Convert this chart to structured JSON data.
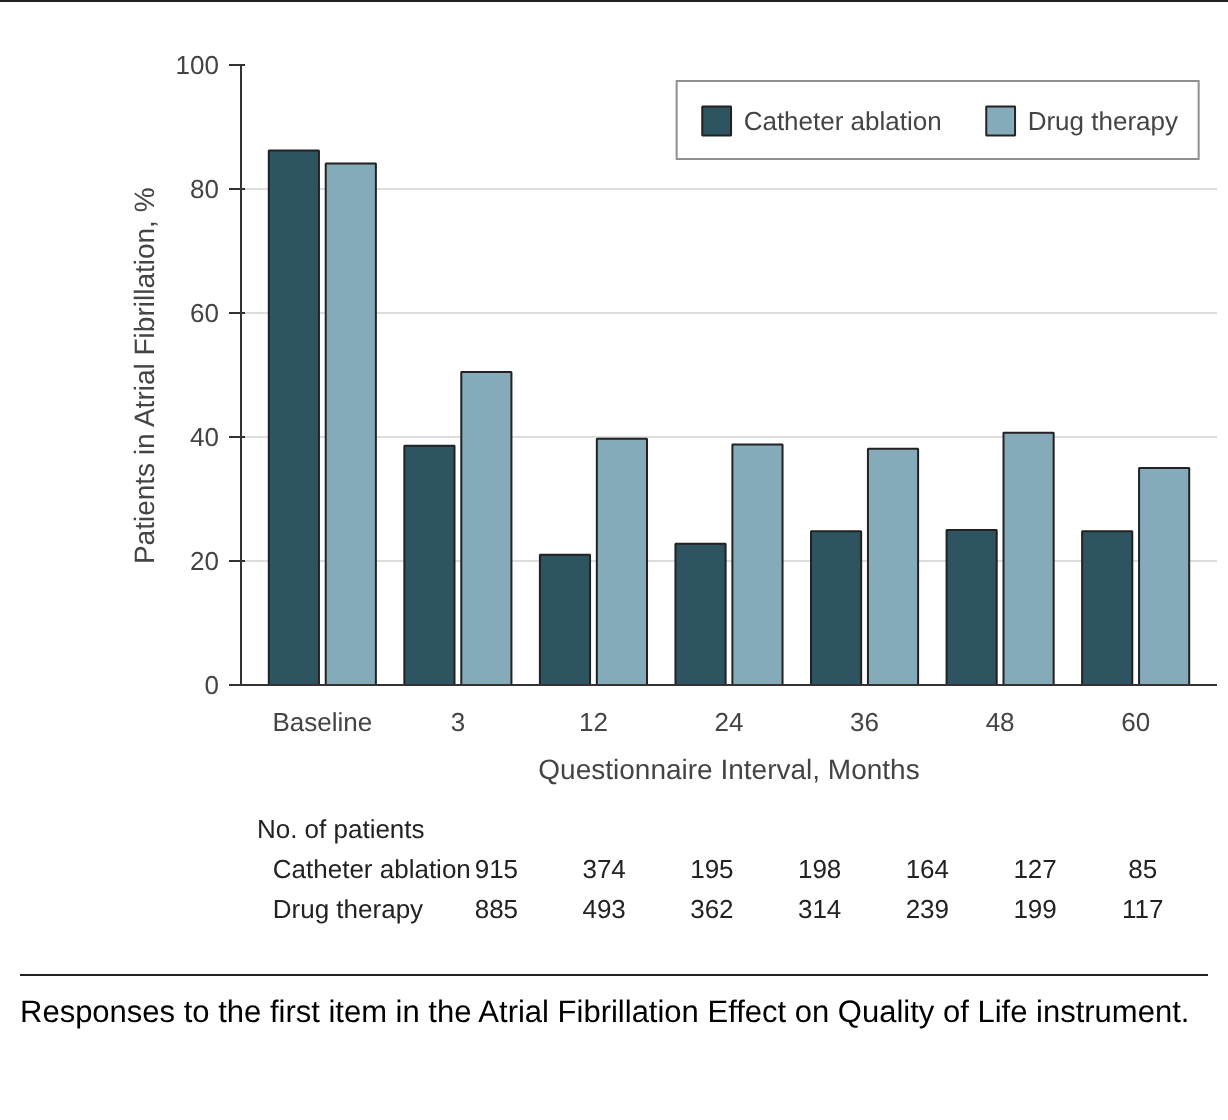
{
  "chart_data": {
    "type": "bar",
    "xlabel": "Questionnaire Interval, Months",
    "ylabel": "Patients in Atrial Fibrillation, %",
    "categories": [
      "Baseline",
      "3",
      "12",
      "24",
      "36",
      "48",
      "60"
    ],
    "series": [
      {
        "name": "Catheter ablation",
        "color": "#2e5361",
        "values": [
          86.2,
          38.6,
          21.0,
          22.8,
          24.8,
          25.0,
          24.8
        ]
      },
      {
        "name": "Drug therapy",
        "color": "#85aab9",
        "values": [
          84.1,
          50.5,
          39.7,
          38.8,
          38.1,
          40.7,
          35.0
        ]
      }
    ],
    "ylim": [
      0,
      100
    ],
    "yticks": [
      0,
      20,
      40,
      60,
      80,
      100
    ],
    "grid": "y",
    "legend": "top right",
    "annotations": [
      "No. of patients",
      "Catheter ablation",
      "915",
      "374",
      "195",
      "198",
      "164",
      "127",
      "85",
      "Drug therapy",
      "885",
      "493",
      "362",
      "314",
      "239",
      "199",
      "117",
      "Responses to the first item in the Atrial Fibrillation Effect on Quality of Life instrument."
    ]
  }
}
